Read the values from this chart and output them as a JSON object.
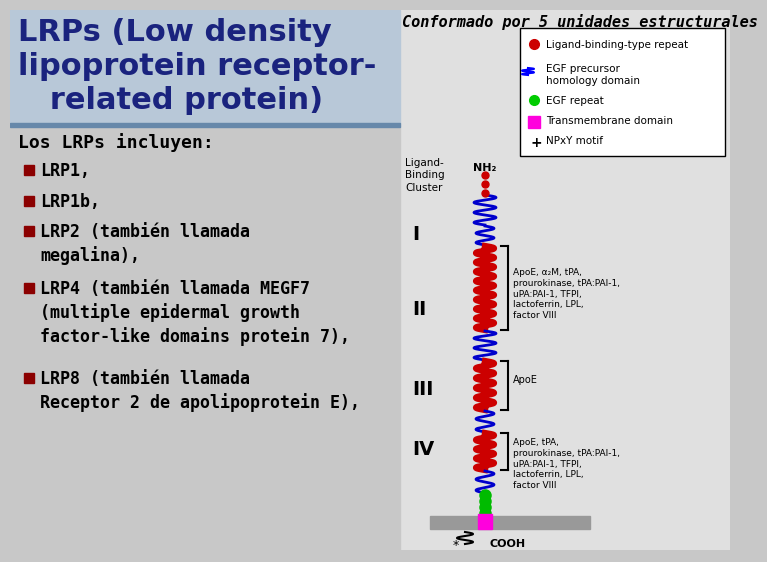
{
  "title_line1": "LRPs (Low density",
  "title_line2": "lipoprotein receptor-",
  "title_line3": "   related protein)",
  "title_color": "#1a237e",
  "title_bg_color": "#b8c8d8",
  "subtitle": "Los LRPs incluyen:",
  "subtitle_color": "#000000",
  "content_bg_color": "#c8c8c8",
  "right_bg_color": "#e0e0e0",
  "bullet_color": "#8b0000",
  "bullet_items": [
    "LRP1,",
    "LRP1b,",
    "LRP2 (también llamada\nmegalina),",
    "LRP4 (también llamada MEGF7\n(multiple epidermal growth\nfactor-like domains protein 7),",
    "LRP8 (también llamada\nReceptor 2 de apolipoprotein E),"
  ],
  "top_text": "Conformado por 5 unidades estructurales",
  "top_text_color": "#000000",
  "stripe_color": "#b0b0b0",
  "divider_color": "#6688aa"
}
